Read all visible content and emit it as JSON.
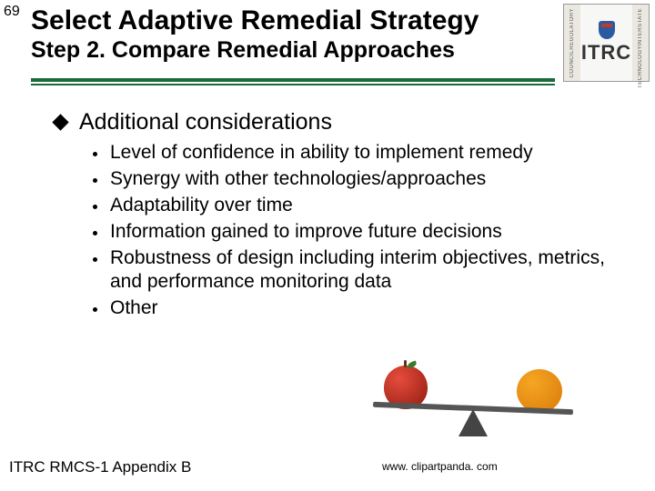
{
  "slide_number": "69",
  "title": "Select Adaptive Remedial Strategy",
  "subtitle": "Step 2. Compare Remedial Approaches",
  "logo": {
    "left_text": "REGULATORY",
    "right_top": "INTERSTATE",
    "right_bottom": "TECHNOLOGY",
    "left_bottom": "COUNCIL",
    "brand": "ITRC"
  },
  "main_bullet": "Additional considerations",
  "sub_bullets": [
    "Level of confidence in ability to implement remedy",
    "Synergy with other technologies/approaches",
    "Adaptability over time",
    "Information gained to improve future decisions",
    "Robustness of design including interim objectives, metrics, and performance monitoring data",
    "Other"
  ],
  "footer_left": "ITRC RMCS-1 Appendix B",
  "footer_right": "www. clipartpanda. com",
  "colors": {
    "rule": "#1a6b3a",
    "apple": "#8e1b0f",
    "orange": "#f6a623",
    "fulcrum": "#444444"
  }
}
